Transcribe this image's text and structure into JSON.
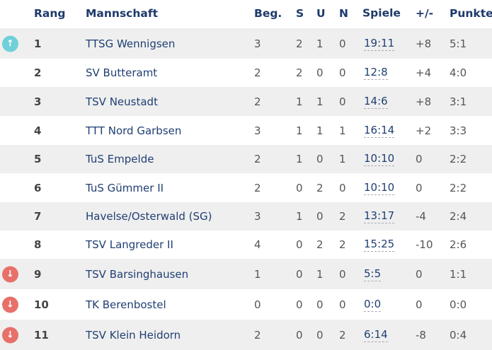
{
  "header": {
    "rank": "Rang",
    "team": "Mannschaft",
    "games": "Beg.",
    "won": "S",
    "draw": "U",
    "lost": "N",
    "matches": "Spiele",
    "diff": "+/-",
    "points": "Punkte"
  },
  "colors": {
    "promotion": "#6fd0d8",
    "relegation": "#e8706a"
  },
  "rows": [
    {
      "rank": "1",
      "team": "TTSG Wennigsen",
      "games": "3",
      "won": "2",
      "draw": "1",
      "lost": "0",
      "matches": "19:11",
      "diff": "+8",
      "points": "5:1",
      "trend": "up"
    },
    {
      "rank": "2",
      "team": "SV Butteramt",
      "games": "2",
      "won": "2",
      "draw": "0",
      "lost": "0",
      "matches": "12:8",
      "diff": "+4",
      "points": "4:0",
      "trend": ""
    },
    {
      "rank": "3",
      "team": "TSV Neustadt",
      "games": "2",
      "won": "1",
      "draw": "1",
      "lost": "0",
      "matches": "14:6",
      "diff": "+8",
      "points": "3:1",
      "trend": ""
    },
    {
      "rank": "4",
      "team": "TTT Nord Garbsen",
      "games": "3",
      "won": "1",
      "draw": "1",
      "lost": "1",
      "matches": "16:14",
      "diff": "+2",
      "points": "3:3",
      "trend": ""
    },
    {
      "rank": "5",
      "team": "TuS Empelde",
      "games": "2",
      "won": "1",
      "draw": "0",
      "lost": "1",
      "matches": "10:10",
      "diff": "0",
      "points": "2:2",
      "trend": ""
    },
    {
      "rank": "6",
      "team": "TuS Gümmer II",
      "games": "2",
      "won": "0",
      "draw": "2",
      "lost": "0",
      "matches": "10:10",
      "diff": "0",
      "points": "2:2",
      "trend": ""
    },
    {
      "rank": "7",
      "team": "Havelse/Osterwald (SG)",
      "games": "3",
      "won": "1",
      "draw": "0",
      "lost": "2",
      "matches": "13:17",
      "diff": "-4",
      "points": "2:4",
      "trend": ""
    },
    {
      "rank": "8",
      "team": "TSV Langreder II",
      "games": "4",
      "won": "0",
      "draw": "2",
      "lost": "2",
      "matches": "15:25",
      "diff": "-10",
      "points": "2:6",
      "trend": ""
    },
    {
      "rank": "9",
      "team": "TSV Barsinghausen",
      "games": "1",
      "won": "0",
      "draw": "1",
      "lost": "0",
      "matches": "5:5",
      "diff": "0",
      "points": "1:1",
      "trend": "down"
    },
    {
      "rank": "10",
      "team": "TK Berenbostel",
      "games": "0",
      "won": "0",
      "draw": "0",
      "lost": "0",
      "matches": "0:0",
      "diff": "0",
      "points": "0:0",
      "trend": "down"
    },
    {
      "rank": "11",
      "team": "TSV Klein Heidorn",
      "games": "2",
      "won": "0",
      "draw": "0",
      "lost": "2",
      "matches": "6:14",
      "diff": "-8",
      "points": "0:4",
      "trend": "down"
    }
  ]
}
